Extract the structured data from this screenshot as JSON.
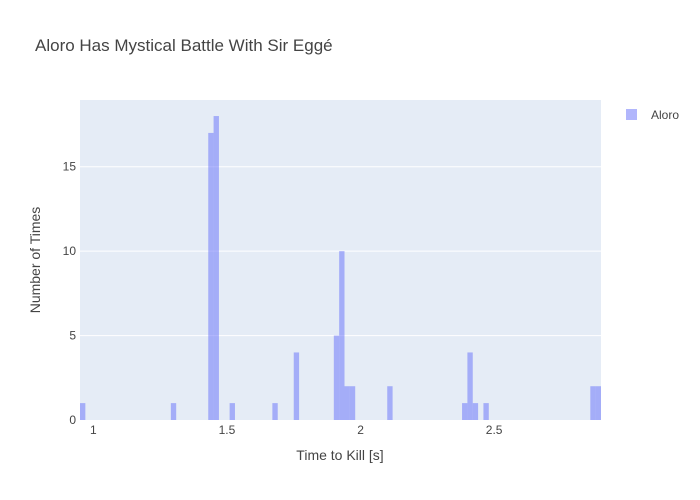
{
  "chart_data": {
    "type": "bar",
    "title": "Aloro Has Mystical Battle With Sir Eggé",
    "xlabel": "Time to Kill [s]",
    "ylabel": "Number of Times",
    "xlim": [
      0.95,
      2.9
    ],
    "ylim": [
      0,
      18.95
    ],
    "bin_width": 0.02,
    "x_ticks": [
      1,
      1.5,
      2,
      2.5
    ],
    "y_ticks": [
      0,
      5,
      10,
      15
    ],
    "grid": true,
    "legend_position": "top-right",
    "series": [
      {
        "name": "Aloro",
        "color": "#636efa",
        "opacity": 0.5,
        "x": [
          0.95,
          1.29,
          1.43,
          1.45,
          1.51,
          1.67,
          1.75,
          1.9,
          1.92,
          1.94,
          1.96,
          2.1,
          2.38,
          2.4,
          2.42,
          2.46,
          2.86,
          2.88
        ],
        "values": [
          1,
          1,
          17,
          18,
          1,
          1,
          4,
          5,
          10,
          2,
          2,
          2,
          1,
          4,
          1,
          1,
          2,
          2
        ]
      }
    ]
  }
}
